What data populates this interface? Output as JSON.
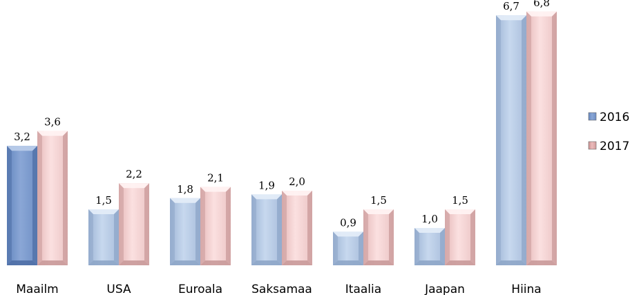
{
  "chart_data": {
    "type": "bar",
    "categories": [
      "Maailm",
      "USA",
      "Euroala",
      "Saksamaa",
      "Itaalia",
      "Jaapan",
      "Hiina"
    ],
    "series": [
      {
        "name": "2016",
        "values": [
          3.2,
          1.5,
          1.8,
          1.9,
          0.9,
          1.0,
          6.7
        ],
        "labels": [
          "3,2",
          "1,5",
          "1,8",
          "1,9",
          "0,9",
          "1,0",
          "6,7"
        ],
        "color": "#b8cde6",
        "highlight_color": "#7f9fcf"
      },
      {
        "name": "2017",
        "values": [
          3.6,
          2.2,
          2.1,
          2.0,
          1.5,
          1.5,
          6.8
        ],
        "labels": [
          "3,6",
          "2,2",
          "2,1",
          "2,0",
          "1,5",
          "1,5",
          "6,8"
        ],
        "color": "#f6d2d2"
      }
    ],
    "title": "",
    "xlabel": "",
    "ylabel": "",
    "ylim": [
      0,
      7.0
    ],
    "grid": false,
    "legend_position": "right"
  }
}
